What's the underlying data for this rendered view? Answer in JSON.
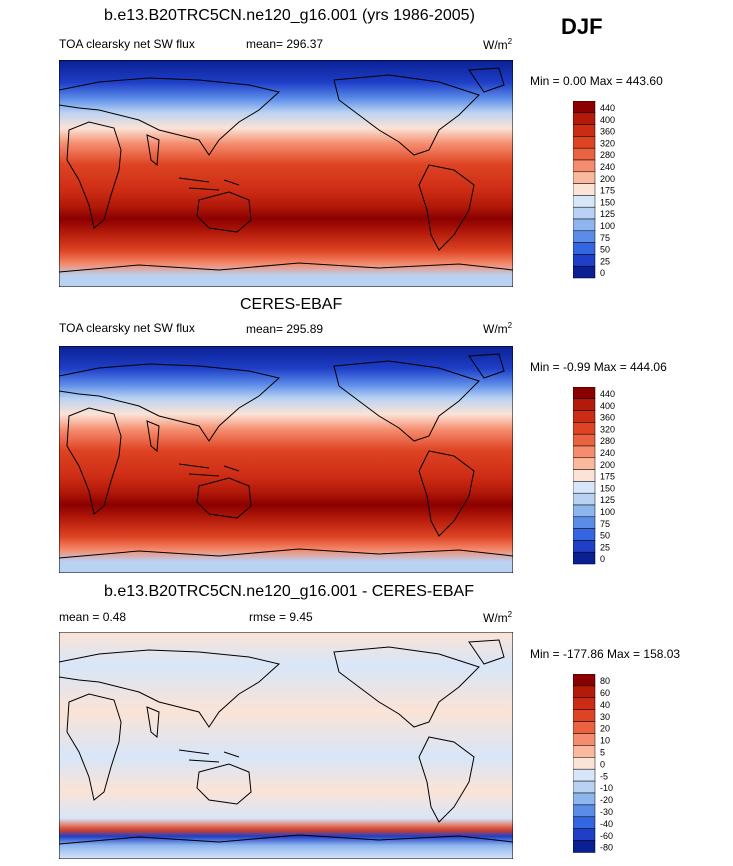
{
  "season": "DJF",
  "panels": [
    {
      "title": "b.e13.B20TRC5CN.ne120_g16.001 (yrs 1986-2005)",
      "left_label": "TOA clearsky net SW flux",
      "mean_text": "mean= 296.37",
      "units": "W/m",
      "units_sup": "2",
      "minmax": "Min =   0.00 Max = 443.60",
      "scale_labels": [
        "440",
        "400",
        "360",
        "320",
        "280",
        "240",
        "200",
        "175",
        "150",
        "125",
        "100",
        "75",
        "50",
        "25",
        "0"
      ]
    },
    {
      "title": "CERES-EBAF",
      "left_label": "TOA clearsky net SW flux",
      "mean_text": "mean= 295.89",
      "units": "W/m",
      "units_sup": "2",
      "minmax": "Min =  -0.99 Max = 444.06",
      "scale_labels": [
        "440",
        "400",
        "360",
        "320",
        "280",
        "240",
        "200",
        "175",
        "150",
        "125",
        "100",
        "75",
        "50",
        "25",
        "0"
      ]
    },
    {
      "title": "b.e13.B20TRC5CN.ne120_g16.001 - CERES-EBAF",
      "left_label": "mean =   0.48",
      "mean_text": "rmse =   9.45",
      "units": "W/m",
      "units_sup": "2",
      "minmax": "Min = -177.86 Max = 158.03",
      "scale_labels": [
        "80",
        "60",
        "40",
        "30",
        "20",
        "10",
        "5",
        "0",
        "-5",
        "-10",
        "-20",
        "-30",
        "-40",
        "-60",
        "-80"
      ]
    }
  ],
  "colors": {
    "abs_scale": [
      "#8b0000",
      "#b31a0a",
      "#cc2b14",
      "#de4423",
      "#eb6240",
      "#f58c6e",
      "#fab89c",
      "#fbe3d6",
      "#d7e6f8",
      "#b9d2f3",
      "#8db5ee",
      "#5b8ce8",
      "#3366e0",
      "#1f3fc8",
      "#0a1f93"
    ],
    "diff_scale": [
      "#8b0000",
      "#b31a0a",
      "#cc2b14",
      "#de4423",
      "#eb6240",
      "#f58c6e",
      "#fab89c",
      "#fbe3d6",
      "#d7e6f8",
      "#b9d2f3",
      "#8db5ee",
      "#5b8ce8",
      "#3366e0",
      "#1f3fc8",
      "#0a1f93"
    ]
  }
}
